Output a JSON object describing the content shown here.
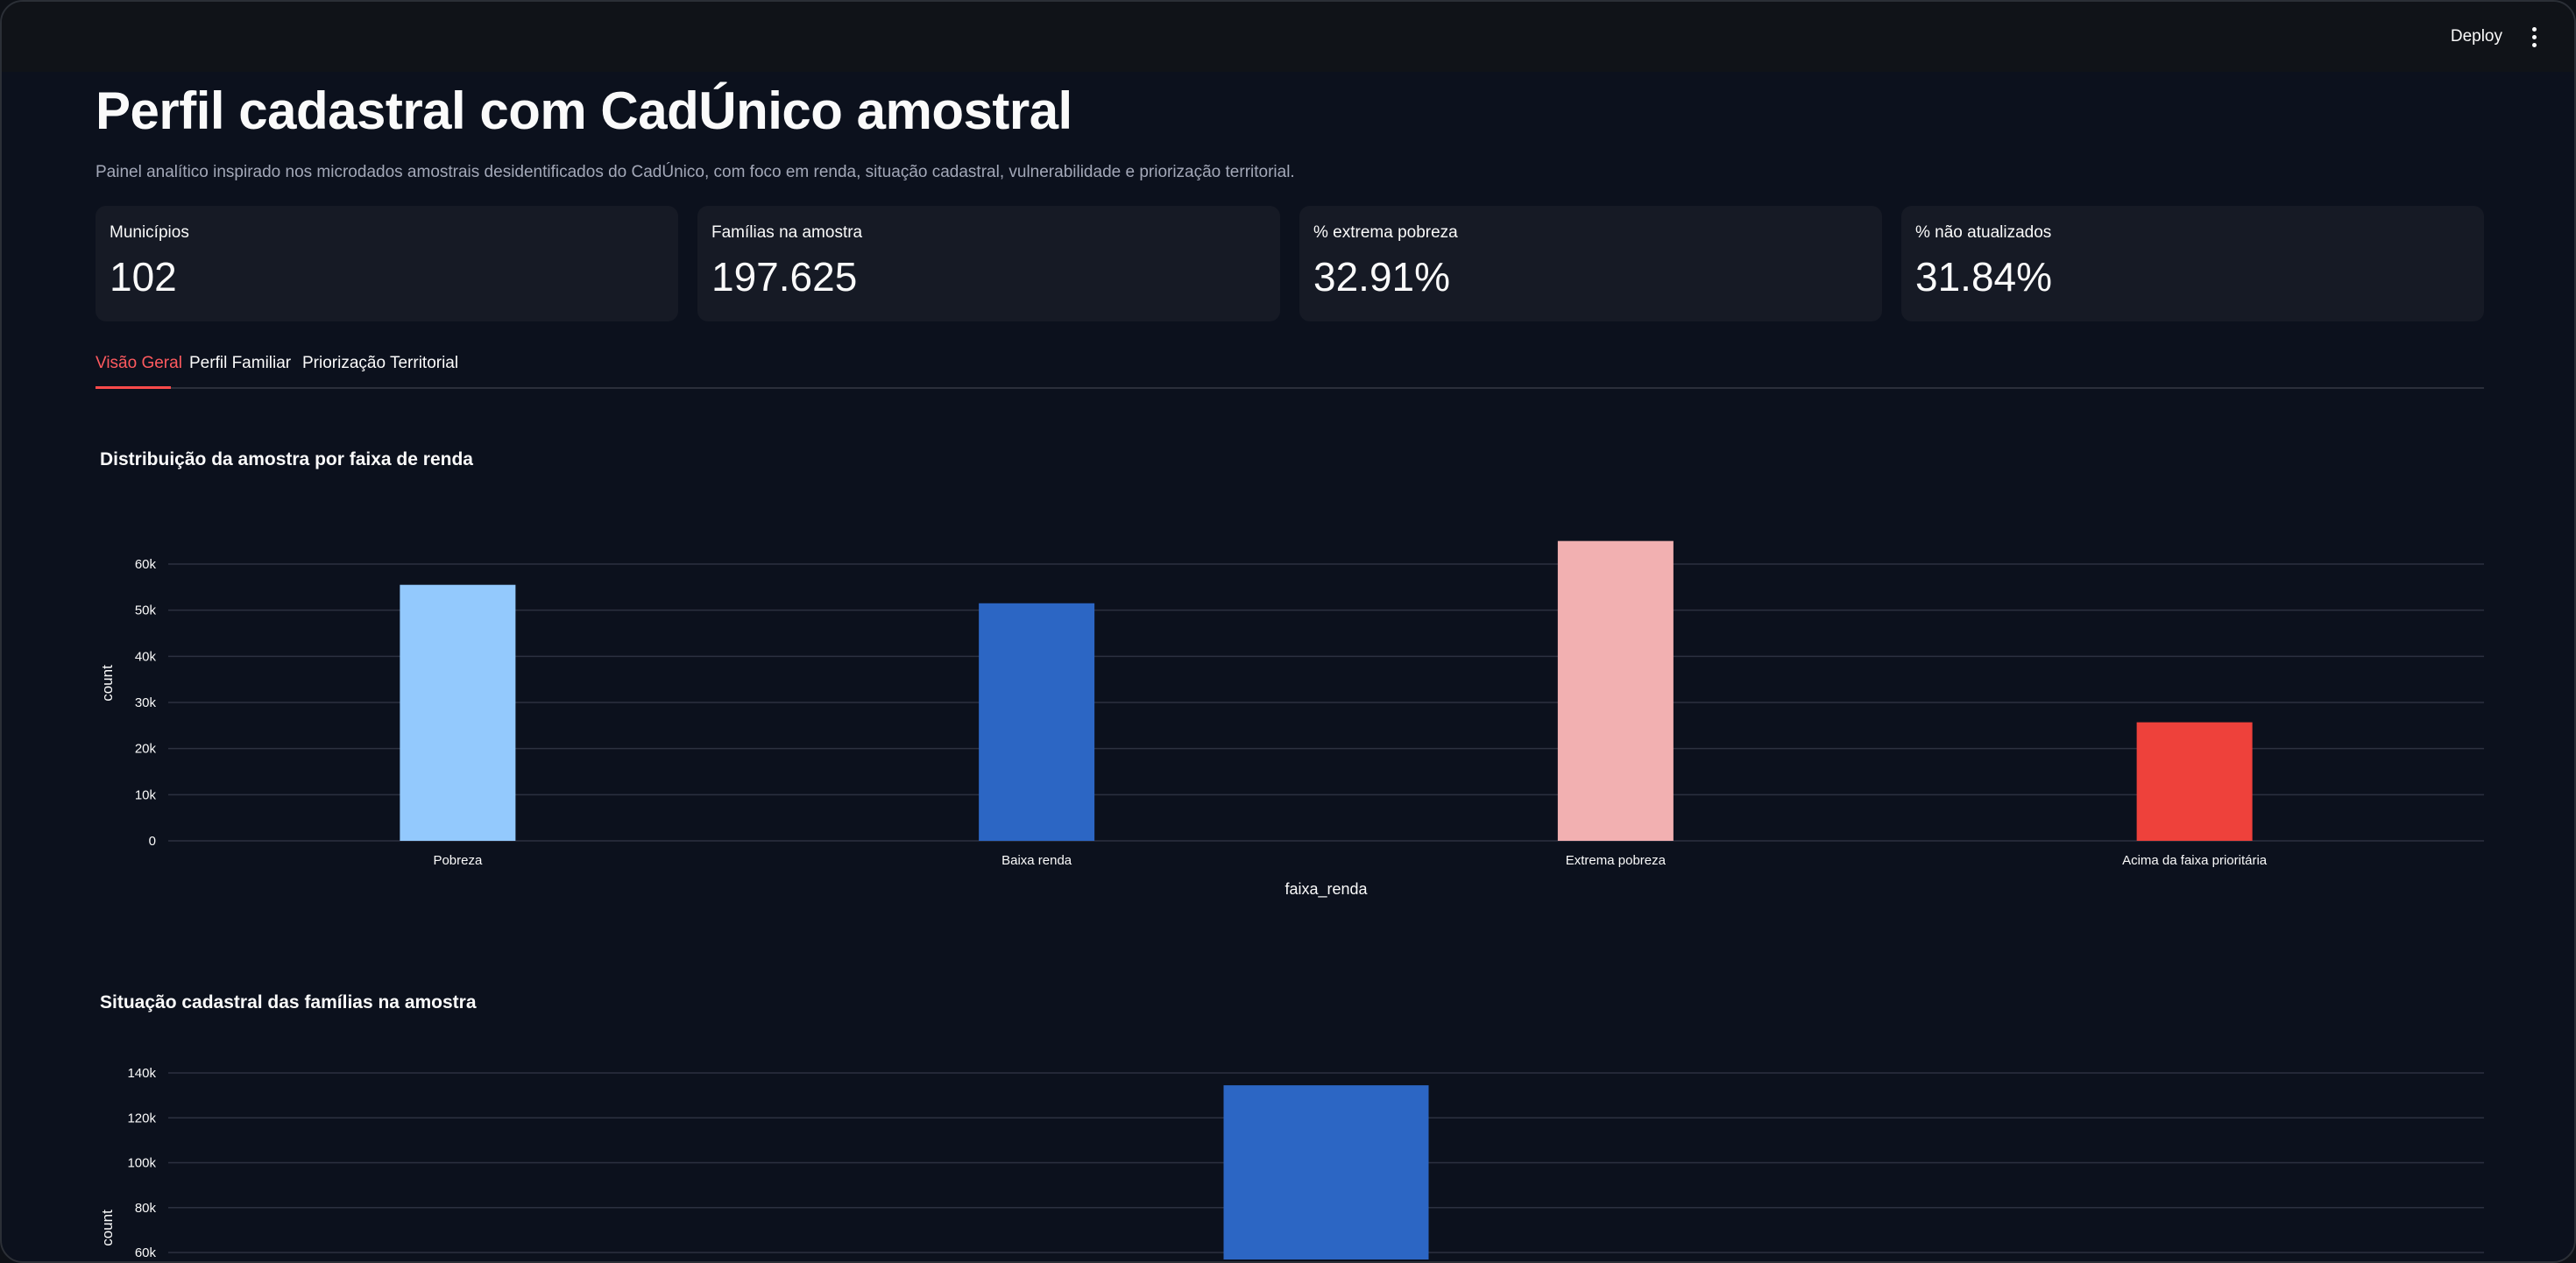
{
  "topbar": {
    "deploy_label": "Deploy",
    "menu_icon": "kebab-menu-icon"
  },
  "header": {
    "title": "Perfil cadastral com CadÚnico amostral",
    "subtitle": "Painel analítico inspirado nos microdados amostrais desidentificados do CadÚnico, com foco em renda, situação cadastral, vulnerabilidade e priorização territorial."
  },
  "metrics": [
    {
      "label": "Municípios",
      "value": "102"
    },
    {
      "label": "Famílias na amostra",
      "value": "197.625"
    },
    {
      "label": "% extrema pobreza",
      "value": "32.91%"
    },
    {
      "label": "% não atualizados",
      "value": "31.84%"
    }
  ],
  "tabs": [
    {
      "label": "Visão Geral",
      "active": true
    },
    {
      "label": "Perfil Familiar",
      "active": false
    },
    {
      "label": "Priorização Territorial",
      "active": false
    }
  ],
  "colors": {
    "accent": "#ff4b4b",
    "background": "#0c111d",
    "card": "#161a25"
  },
  "chart_data": [
    {
      "type": "bar",
      "title": "Distribuição da amostra por faixa de renda",
      "xlabel": "faixa_renda",
      "ylabel": "count",
      "categories": [
        "Pobreza",
        "Baixa renda",
        "Extrema pobreza",
        "Acima da faixa prioritária"
      ],
      "values": [
        55500,
        51500,
        65000,
        25700
      ],
      "colors": [
        "#93c9fd",
        "#2c66c4",
        "#f2b0b1",
        "#ee413b"
      ],
      "yticks": [
        0,
        10000,
        20000,
        30000,
        40000,
        50000,
        60000
      ],
      "ytick_labels": [
        "0",
        "10k",
        "20k",
        "30k",
        "40k",
        "50k",
        "60k"
      ],
      "ylim": [
        0,
        67000
      ],
      "grid": true
    },
    {
      "type": "bar",
      "title": "Situação cadastral das famílias na amostra",
      "ylabel": "count",
      "categories": [
        "",
        "",
        ""
      ],
      "values": [
        null,
        134500,
        null
      ],
      "colors": [
        "#93c9fd",
        "#2c66c4",
        "#f2b0b1"
      ],
      "yticks": [
        60000,
        80000,
        100000,
        120000,
        140000
      ],
      "ytick_labels": [
        "60k",
        "80k",
        "100k",
        "120k",
        "140k"
      ],
      "ylim": [
        60000,
        145000
      ],
      "grid": true
    }
  ]
}
